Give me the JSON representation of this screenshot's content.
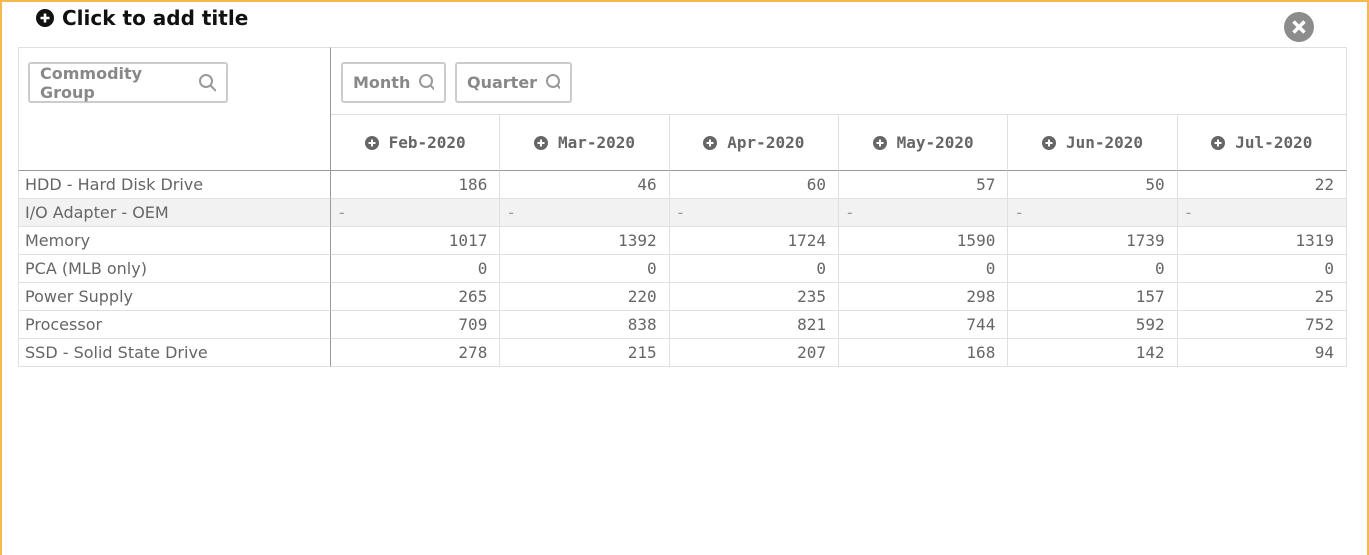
{
  "header": {
    "title": "Click to add title"
  },
  "filters": [
    "Commodity Group",
    "Month",
    "Quarter"
  ],
  "table": {
    "columns": [
      "Feb-2020",
      "Mar-2020",
      "Apr-2020",
      "May-2020",
      "Jun-2020",
      "Jul-2020"
    ],
    "rows": [
      {
        "label": "HDD - Hard Disk Drive",
        "values": [
          186,
          46,
          60,
          57,
          50,
          22
        ]
      },
      {
        "label": "I/O Adapter - OEM",
        "values": [
          "-",
          "-",
          "-",
          "-",
          "-",
          "-"
        ]
      },
      {
        "label": "Memory",
        "values": [
          1017,
          1392,
          1724,
          1590,
          1739,
          1319
        ]
      },
      {
        "label": "PCA (MLB only)",
        "values": [
          0,
          0,
          0,
          0,
          0,
          0
        ]
      },
      {
        "label": "Power Supply",
        "values": [
          265,
          220,
          235,
          298,
          157,
          25
        ]
      },
      {
        "label": "Processor",
        "values": [
          709,
          838,
          821,
          744,
          592,
          752
        ]
      },
      {
        "label": "SSD - Solid State Drive",
        "values": [
          278,
          215,
          207,
          168,
          142,
          94
        ]
      }
    ]
  }
}
